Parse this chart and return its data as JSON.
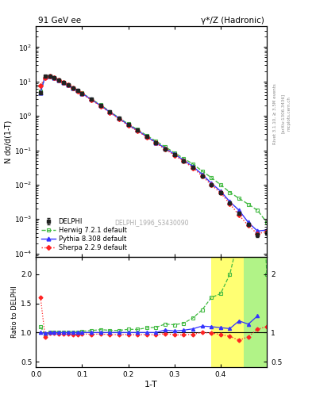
{
  "title_left": "91 GeV ee",
  "title_right": "γ*/Z (Hadronic)",
  "ylabel_main": "N dσ/d(1-T)",
  "ylabel_ratio": "Ratio to DELPHI",
  "xlabel": "1-T",
  "watermark": "DELPHI_1996_S3430090",
  "right_label": "Rivet 3.1.10, ≥ 3.5M events",
  "arxiv_label": "[arXiv:1306.3436]",
  "mcplots_label": "mcplots.cern.ch",
  "delphi_x": [
    0.01,
    0.02,
    0.03,
    0.04,
    0.05,
    0.06,
    0.07,
    0.08,
    0.09,
    0.1,
    0.12,
    0.14,
    0.16,
    0.18,
    0.2,
    0.22,
    0.24,
    0.26,
    0.28,
    0.3,
    0.32,
    0.34,
    0.36,
    0.38,
    0.4,
    0.42,
    0.44,
    0.46,
    0.48,
    0.5
  ],
  "delphi_y": [
    4.8,
    14.0,
    14.5,
    13.0,
    11.0,
    9.5,
    8.0,
    6.5,
    5.5,
    4.5,
    3.0,
    2.0,
    1.3,
    0.85,
    0.55,
    0.38,
    0.25,
    0.17,
    0.11,
    0.075,
    0.05,
    0.032,
    0.018,
    0.01,
    0.006,
    0.003,
    0.0015,
    0.0007,
    0.00035,
    0.0004
  ],
  "delphi_yerr": [
    0.4,
    0.6,
    0.6,
    0.5,
    0.5,
    0.4,
    0.35,
    0.28,
    0.22,
    0.18,
    0.12,
    0.08,
    0.055,
    0.038,
    0.025,
    0.017,
    0.011,
    0.008,
    0.005,
    0.0035,
    0.0025,
    0.0017,
    0.0011,
    0.0007,
    0.0004,
    0.00022,
    0.00013,
    7e-05,
    4.5e-05,
    5.5e-05
  ],
  "herwig_y": [
    5.3,
    13.5,
    14.5,
    13.0,
    11.0,
    9.5,
    8.0,
    6.5,
    5.5,
    4.6,
    3.1,
    2.1,
    1.35,
    0.88,
    0.58,
    0.4,
    0.27,
    0.185,
    0.126,
    0.085,
    0.058,
    0.04,
    0.025,
    0.016,
    0.01,
    0.006,
    0.004,
    0.0027,
    0.0018,
    0.0008
  ],
  "pythia_y": [
    4.8,
    13.8,
    14.5,
    13.0,
    11.0,
    9.5,
    8.0,
    6.5,
    5.5,
    4.5,
    3.0,
    2.0,
    1.3,
    0.85,
    0.55,
    0.38,
    0.25,
    0.17,
    0.1148,
    0.0769,
    0.052,
    0.034,
    0.02,
    0.011,
    0.0065,
    0.0032,
    0.0018,
    0.0008,
    0.00045,
    0.00048
  ],
  "sherpa_y": [
    7.7,
    13.0,
    14.3,
    12.8,
    10.8,
    9.3,
    7.8,
    6.3,
    5.3,
    4.4,
    2.9,
    1.95,
    1.25,
    0.82,
    0.53,
    0.365,
    0.242,
    0.163,
    0.108,
    0.072,
    0.048,
    0.031,
    0.018,
    0.0099,
    0.0058,
    0.0028,
    0.0013,
    0.00065,
    0.00037,
    0.00044
  ],
  "delphi_color": "#222222",
  "herwig_color": "#44bb44",
  "pythia_color": "#3333ff",
  "sherpa_color": "#ff2222",
  "ratio_herwig_x": [
    0.01,
    0.02,
    0.03,
    0.04,
    0.05,
    0.06,
    0.07,
    0.08,
    0.09,
    0.1,
    0.12,
    0.14,
    0.16,
    0.18,
    0.2,
    0.22,
    0.24,
    0.26,
    0.28,
    0.3,
    0.32,
    0.34,
    0.36,
    0.38,
    0.4,
    0.42,
    0.44,
    0.46,
    0.48,
    0.5
  ],
  "ratio_herwig": [
    1.1,
    0.964,
    1.0,
    1.0,
    1.0,
    1.0,
    1.0,
    1.0,
    1.0,
    1.022,
    1.033,
    1.05,
    1.038,
    1.035,
    1.055,
    1.053,
    1.08,
    1.088,
    1.145,
    1.133,
    1.16,
    1.25,
    1.389,
    1.6,
    1.667,
    2.0,
    2.667,
    3.857,
    5.143,
    2.0
  ],
  "ratio_pythia_x": [
    0.01,
    0.02,
    0.03,
    0.04,
    0.05,
    0.06,
    0.07,
    0.08,
    0.09,
    0.1,
    0.12,
    0.14,
    0.16,
    0.18,
    0.2,
    0.22,
    0.24,
    0.26,
    0.28,
    0.3,
    0.32,
    0.34,
    0.36,
    0.38,
    0.4,
    0.42,
    0.44,
    0.46,
    0.48
  ],
  "ratio_pythia": [
    1.0,
    0.986,
    1.0,
    1.0,
    1.0,
    1.0,
    1.0,
    1.0,
    1.0,
    1.0,
    1.0,
    1.0,
    1.0,
    1.0,
    1.0,
    1.0,
    1.0,
    1.0,
    1.044,
    1.025,
    1.04,
    1.063,
    1.111,
    1.1,
    1.083,
    1.067,
    1.2,
    1.143,
    1.286
  ],
  "ratio_sherpa_x": [
    0.01,
    0.02,
    0.03,
    0.04,
    0.05,
    0.06,
    0.07,
    0.08,
    0.09,
    0.1,
    0.12,
    0.14,
    0.16,
    0.18,
    0.2,
    0.22,
    0.24,
    0.26,
    0.28,
    0.3,
    0.32,
    0.34,
    0.36,
    0.38,
    0.4,
    0.42,
    0.44,
    0.46,
    0.48,
    0.5
  ],
  "ratio_sherpa": [
    1.604,
    0.929,
    0.986,
    0.985,
    0.982,
    0.979,
    0.975,
    0.969,
    0.964,
    0.978,
    0.967,
    0.975,
    0.962,
    0.965,
    0.964,
    0.961,
    0.968,
    0.959,
    0.982,
    0.96,
    0.96,
    0.969,
    1.0,
    0.99,
    0.967,
    0.933,
    0.867,
    0.929,
    1.057,
    1.1
  ],
  "ylim_main": [
    8e-05,
    400
  ],
  "ylim_ratio": [
    0.4,
    2.3
  ],
  "xlim": [
    0.0,
    0.5
  ],
  "yellow_band_xstart": 0.38,
  "yellow_band_xend": 0.505,
  "yellow_band_ybot": 0.4,
  "yellow_band_ytop": 2.3,
  "green_band_xstart": 0.45,
  "green_band_xend": 0.505,
  "green_band_ybot": 0.4,
  "green_band_ytop": 2.3
}
